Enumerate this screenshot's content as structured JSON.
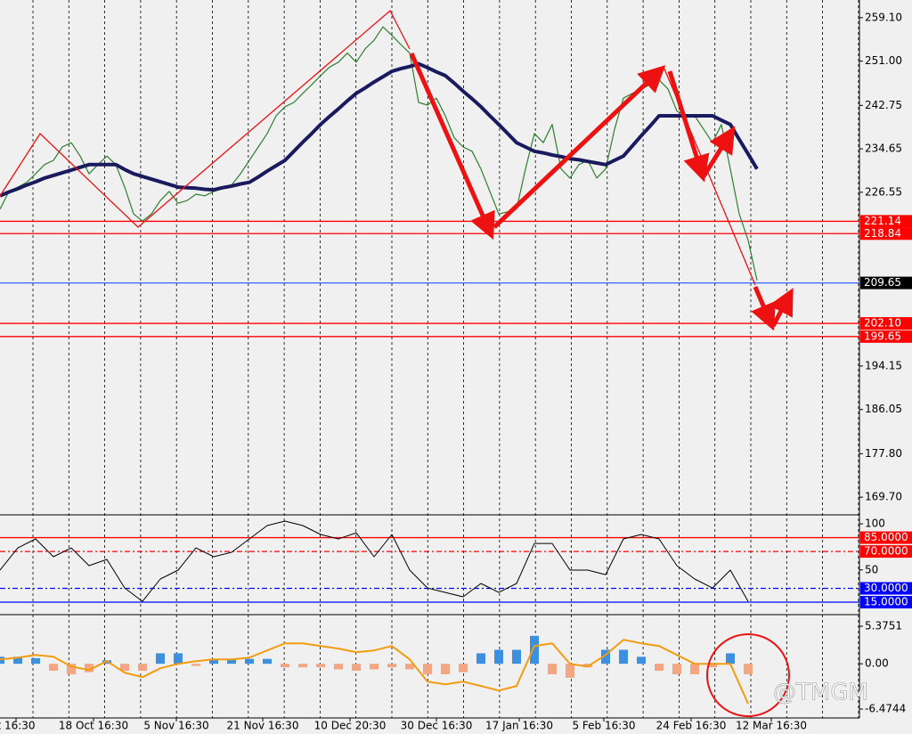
{
  "chart_data": [
    {
      "type": "line",
      "xlim": [
        0,
        96.5
      ],
      "ylim": [
        166.4,
        262.4
      ],
      "yticks": [
        {
          "value": 259.1,
          "label": "259.10"
        },
        {
          "value": 251,
          "label": "251.00"
        },
        242.75,
        234.65,
        226.55,
        194.15,
        186.05,
        {
          "value": 177.8,
          "label": "177.80"
        },
        {
          "value": 169.7,
          "label": "169.70"
        }
      ],
      "levels": [
        {
          "value": 221.14,
          "color": "#ff0000"
        },
        {
          "value": 218.84,
          "color": "#ff0000"
        },
        {
          "value": 209.65,
          "color": "#3366ff",
          "label_bg": "#000000"
        },
        {
          "value": 202.1,
          "label": "202.10",
          "color": "#ff0000"
        },
        {
          "value": 199.65,
          "color": "#ff0000"
        }
      ],
      "xticks": [
        {
          "value": 1.8,
          "label": "t 16:30"
        },
        {
          "value": 10.5,
          "label": "18 Oct 16:30"
        },
        {
          "value": 19.8,
          "label": "5 Nov 16:30"
        },
        {
          "value": 29.5,
          "label": "21 Nov 16:30"
        },
        {
          "value": 39.3,
          "label": "10 Dec 20:30"
        },
        {
          "value": 49,
          "label": "30 Dec 16:30"
        },
        {
          "value": 58.3,
          "label": "17 Jan 16:30"
        },
        {
          "value": 67.8,
          "label": "5 Feb 16:30"
        },
        {
          "value": 77.6,
          "label": "24 Feb 16:30"
        },
        {
          "value": 86.6,
          "label": "12 Mar 16:30"
        }
      ],
      "x": [
        0,
        1,
        2,
        3,
        4,
        5,
        6,
        7,
        8,
        9,
        10,
        11,
        12,
        13,
        14,
        15,
        16,
        17,
        18,
        19,
        20,
        21,
        22,
        23,
        24,
        25,
        26,
        27,
        28,
        29,
        30,
        31,
        32,
        33,
        34,
        35,
        36,
        37,
        38,
        39,
        40,
        41,
        42,
        43,
        44,
        45,
        46,
        47,
        48,
        49,
        50,
        51,
        52,
        53,
        54,
        55,
        56,
        57,
        58,
        59,
        60,
        61,
        62,
        63,
        64,
        65,
        66,
        67,
        68,
        69,
        70,
        71,
        72,
        73,
        74,
        75,
        76,
        77,
        78,
        79,
        80,
        81,
        82,
        83,
        84,
        85
      ],
      "series": [
        {
          "color": "#2f7f2f",
          "width": 1.2,
          "values": [
            223.4,
            226.7,
            227.5,
            228.4,
            230.0,
            231.7,
            232.5,
            235.0,
            235.8,
            233.3,
            230.0,
            231.7,
            233.3,
            231.7,
            227.5,
            222.5,
            221.2,
            222.5,
            225.0,
            226.7,
            224.5,
            225.0,
            226.2,
            225.9,
            226.7,
            227.2,
            227.9,
            230.0,
            232.5,
            235.0,
            237.5,
            240.8,
            242.5,
            243.3,
            245.0,
            246.6,
            248.3,
            249.9,
            250.8,
            252.5,
            250.8,
            253.3,
            254.9,
            257.4,
            255.8,
            254.1,
            252.5,
            243.3,
            242.8,
            244.1,
            240.8,
            236.7,
            235.0,
            234.2,
            230.9,
            226.7,
            222.5,
            222.9,
            223.4,
            230.9,
            237.5,
            235.8,
            239.2,
            230.9,
            229.2,
            231.7,
            232.5,
            229.2,
            230.9,
            238.3,
            244.1,
            245.0,
            245.8,
            246.6,
            247.5,
            245.8,
            241.7,
            240.8,
            240.8,
            238.3,
            235.8,
            239.2,
            230.9,
            222.5,
            217.6,
            210.1
          ]
        },
        {
          "color": "#1a1a5e",
          "width": 4,
          "values": [
            225.9,
            226.6,
            227.2,
            227.9,
            228.5,
            229.2,
            229.7,
            230.2,
            230.7,
            231.2,
            231.7,
            231.7,
            231.7,
            231.7,
            230.8,
            230.0,
            229.5,
            229.0,
            228.5,
            228.0,
            227.5,
            227.4,
            227.3,
            227.1,
            227.0,
            227.4,
            227.7,
            228.1,
            228.4,
            229.4,
            230.5,
            231.5,
            232.5,
            234.2,
            235.9,
            237.5,
            239.2,
            240.7,
            242.1,
            243.6,
            245.0,
            246.0,
            247.1,
            248.1,
            249.1,
            249.6,
            250.0,
            250.5,
            249.8,
            249.0,
            248.3,
            246.9,
            245.4,
            244.0,
            242.5,
            240.8,
            239.2,
            237.5,
            235.8,
            235.0,
            234.2,
            233.9,
            233.5,
            233.2,
            232.8,
            232.6,
            232.3,
            232.0,
            231.7,
            232.5,
            233.3,
            235.2,
            237.1,
            238.9,
            240.8,
            240.8,
            240.8,
            240.8,
            240.8,
            240.8,
            240.8,
            240.0,
            239.2,
            236.4,
            233.7,
            230.9
          ]
        }
      ]
    },
    {
      "type": "line",
      "xlim": [
        0,
        48.25
      ],
      "ylim": [
        1.5,
        109.7
      ],
      "yticks": [
        100,
        50
      ],
      "levels": [
        {
          "value": 85,
          "label": "85.0000",
          "color": "#ff0000",
          "label_bg": "#ff0000"
        },
        {
          "value": 70,
          "label": "70.0000",
          "color": "#ff0000",
          "dash": "6 3 2 3",
          "label_bg": "#ff0000"
        },
        {
          "value": 30,
          "label": "30.0000",
          "color": "#0000ff",
          "dash": "6 3 2 3",
          "label_bg": "#0000ff"
        },
        {
          "value": 15,
          "label": "15.0000",
          "color": "#0000ff",
          "label_bg": "#0000ff"
        }
      ],
      "x": [
        0,
        1,
        2,
        3,
        4,
        5,
        6,
        7,
        8,
        9,
        10,
        11,
        12,
        13,
        14,
        15,
        16,
        17,
        18,
        19,
        20,
        21,
        22,
        23,
        24,
        25,
        26,
        27,
        28,
        29,
        30,
        31,
        32,
        33,
        34,
        35,
        36,
        37,
        38,
        39,
        40,
        41,
        42
      ],
      "series": [
        {
          "color": "#000000",
          "width": 1,
          "values": [
            49.8,
            73.9,
            83.6,
            64.3,
            73.9,
            54.6,
            61.4,
            30.4,
            15.9,
            40.1,
            49.8,
            73.9,
            64.3,
            69.1,
            83.6,
            98.1,
            102.9,
            98.1,
            88.4,
            83.6,
            90.3,
            64.3,
            88.4,
            49.8,
            30.4,
            25.6,
            20.8,
            35.3,
            25.6,
            35.3,
            78.7,
            78.7,
            49.8,
            49.8,
            44.9,
            83.6,
            88.4,
            83.6,
            54.6,
            40.1,
            30.4,
            49.8,
            15.9
          ]
        }
      ]
    },
    {
      "type": "bar",
      "xlim": [
        0,
        48.25
      ],
      "ylim": [
        -7.75,
        7.03
      ],
      "yticks": [
        5.3751,
        {
          "value": 0,
          "label": "0.00"
        },
        -6.4744
      ],
      "pos_color": "#3d8fe0",
      "neg_color": "#f4a582",
      "x": [
        0,
        1,
        2,
        3,
        4,
        5,
        6,
        7,
        8,
        9,
        10,
        11,
        12,
        13,
        14,
        15,
        16,
        17,
        18,
        19,
        20,
        21,
        22,
        23,
        24,
        25,
        26,
        27,
        28,
        29,
        30,
        31,
        32,
        33,
        34,
        35,
        36,
        37,
        38,
        39,
        40,
        41,
        42
      ],
      "values": [
        1.0,
        1.0,
        0.8,
        -1.0,
        -1.5,
        -1.2,
        0.5,
        -1.0,
        -1.0,
        1.5,
        1.5,
        -0.3,
        0.7,
        0.7,
        0.7,
        0.7,
        -0.5,
        -0.5,
        -0.5,
        -0.8,
        -1.0,
        -0.8,
        -0.5,
        -0.8,
        -1.5,
        -1.5,
        -1.2,
        1.5,
        2.0,
        2.0,
        4.0,
        -1.5,
        -2.0,
        -0.5,
        2.0,
        2.0,
        1.0,
        -1.0,
        -1.5,
        -1.5,
        -0.5,
        1.5,
        -1.5
      ],
      "series": [
        {
          "color": "#f39c12",
          "width": 2,
          "values": [
            0.64,
            0.89,
            1.27,
            1.02,
            -0.38,
            -0.89,
            0.38,
            -1.27,
            -1.91,
            -0.64,
            0,
            0.38,
            0.64,
            0.64,
            0.89,
            1.91,
            2.93,
            2.93,
            2.55,
            2.17,
            1.66,
            1.91,
            2.55,
            0.64,
            -2.55,
            -2.93,
            -2.55,
            -3.18,
            -3.82,
            -3.18,
            2.55,
            2.93,
            0,
            -0.38,
            1.27,
            3.44,
            2.93,
            2.55,
            1.27,
            0,
            0,
            0,
            -5.73
          ]
        }
      ]
    }
  ],
  "watermark": "@TMGM"
}
